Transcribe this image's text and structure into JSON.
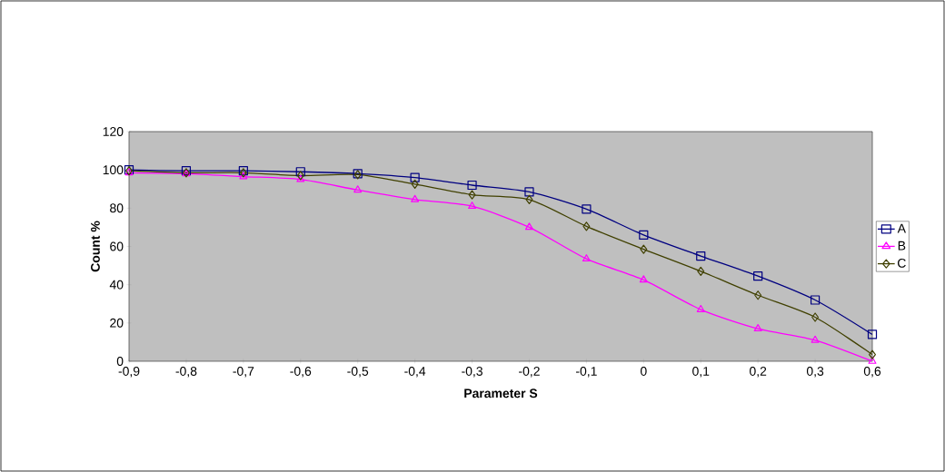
{
  "chart_data": {
    "type": "line",
    "xlabel": "Parameter S",
    "ylabel": "Count %",
    "categories": [
      "-0,9",
      "-0,8",
      "-0,7",
      "-0,6",
      "-0,5",
      "-0,4",
      "-0,3",
      "-0,2",
      "-0,1",
      "0",
      "0,1",
      "0,2",
      "0,3",
      "0,6"
    ],
    "series": [
      {
        "name": "A",
        "color": "#000080",
        "marker": "square",
        "values": [
          100,
          99.5,
          99.5,
          99,
          98,
          96,
          92,
          88.5,
          79.5,
          66,
          55,
          44.5,
          32,
          14
        ]
      },
      {
        "name": "B",
        "color": "#ff00ff",
        "marker": "triangle",
        "values": [
          98.5,
          98,
          96.5,
          95,
          89.5,
          84.5,
          81,
          70,
          53.5,
          42.5,
          27,
          17,
          11,
          0
        ]
      },
      {
        "name": "C",
        "color": "#404000",
        "marker": "diamond",
        "values": [
          99.5,
          98.5,
          98.5,
          97,
          97.5,
          92.5,
          87,
          84.5,
          70.5,
          58.5,
          47,
          34.5,
          23,
          3.5
        ]
      }
    ],
    "ylim": [
      0,
      120
    ],
    "yticks": [
      0,
      20,
      40,
      60,
      80,
      100,
      120
    ],
    "grid": false,
    "legend": "right",
    "line_style": "solid"
  }
}
